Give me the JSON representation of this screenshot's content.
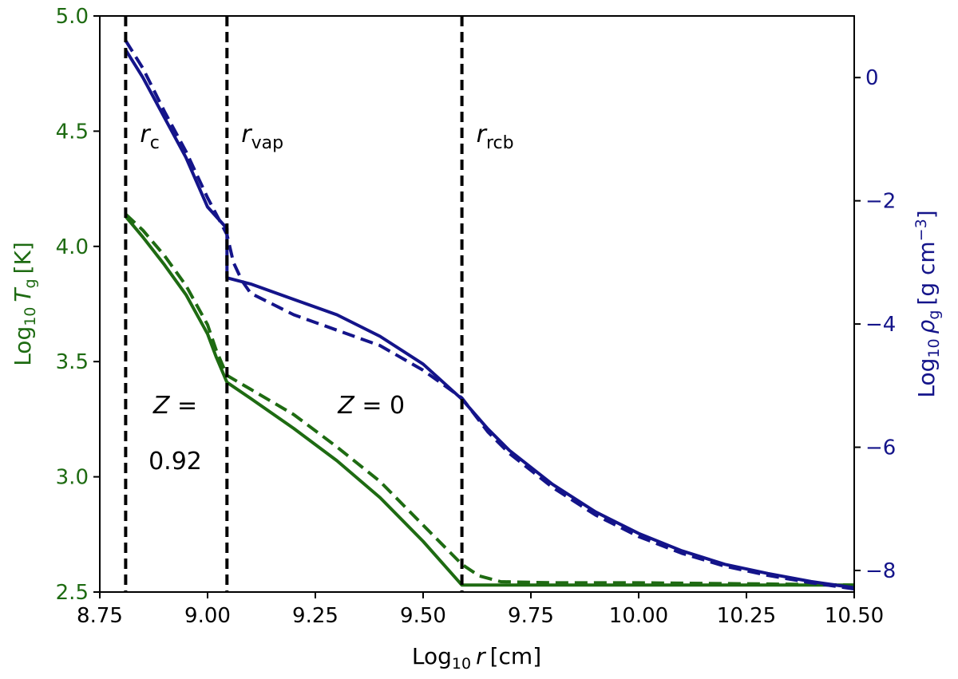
{
  "chart_data": {
    "type": "line",
    "xlabel": {
      "main": "Log",
      "sub": "10",
      "var": "r",
      "unit": "[cm]"
    },
    "ylabel_left": {
      "main": "Log",
      "sub": "10",
      "var": "T",
      "var_sub": "g",
      "unit": "[K]"
    },
    "ylabel_right": {
      "main": "Log",
      "sub": "10",
      "var": "ρ",
      "var_sub": "g",
      "unit": "[g cm",
      "unit_sup": "−3",
      "unit_end": "]"
    },
    "xlim": [
      8.75,
      10.5
    ],
    "ylim_left": [
      2.5,
      5.0
    ],
    "ylim_right": [
      -8.35,
      1.0
    ],
    "x_ticks": [
      {
        "value": 8.75,
        "label": "8.75"
      },
      {
        "value": 9.0,
        "label": "9.00"
      },
      {
        "value": 9.25,
        "label": "9.25"
      },
      {
        "value": 9.5,
        "label": "9.50"
      },
      {
        "value": 9.75,
        "label": "9.75"
      },
      {
        "value": 10.0,
        "label": "10.00"
      },
      {
        "value": 10.25,
        "label": "10.25"
      },
      {
        "value": 10.5,
        "label": "10.50"
      }
    ],
    "y_left_ticks": [
      {
        "value": 2.5,
        "label": "2.5"
      },
      {
        "value": 3.0,
        "label": "3.0"
      },
      {
        "value": 3.5,
        "label": "3.5"
      },
      {
        "value": 4.0,
        "label": "4.0"
      },
      {
        "value": 4.5,
        "label": "4.5"
      },
      {
        "value": 5.0,
        "label": "5.0"
      }
    ],
    "y_right_ticks": [
      {
        "value": 0,
        "label": "0"
      },
      {
        "value": -2,
        "label": "−2"
      },
      {
        "value": -4,
        "label": "−4"
      },
      {
        "value": -6,
        "label": "−6"
      },
      {
        "value": -8,
        "label": "−8"
      }
    ],
    "colors": {
      "temperature": "#1e6b12",
      "density": "#14148a",
      "boundary": "#000000"
    },
    "vlines": [
      {
        "x": 8.81,
        "label_main": "r",
        "label_sub": "c"
      },
      {
        "x": 9.045,
        "label_main": "r",
        "label_sub": "vap"
      },
      {
        "x": 9.59,
        "label_main": "r",
        "label_sub": "rcb"
      }
    ],
    "annotations": [
      {
        "id": "z-inner",
        "line1": "Z =",
        "line2": "0.92",
        "x": 8.925,
        "y_left": 3.31
      },
      {
        "id": "z-outer",
        "line1": "Z = 0",
        "x": 9.38,
        "y_left": 3.31
      }
    ],
    "series": [
      {
        "id": "T-solid",
        "axis": "left",
        "style": "solid",
        "color_key": "temperature",
        "x": [
          8.81,
          8.85,
          8.9,
          8.95,
          9.0,
          9.02,
          9.045,
          9.1,
          9.2,
          9.3,
          9.4,
          9.5,
          9.59,
          9.62,
          9.8,
          10.0,
          10.3,
          10.5
        ],
        "y": [
          4.13,
          4.04,
          3.92,
          3.79,
          3.62,
          3.52,
          3.41,
          3.34,
          3.21,
          3.07,
          2.91,
          2.72,
          2.53,
          2.53,
          2.53,
          2.53,
          2.53,
          2.53
        ]
      },
      {
        "id": "T-dashed",
        "axis": "left",
        "style": "dashed",
        "color_key": "temperature",
        "x": [
          8.81,
          8.85,
          8.9,
          8.95,
          9.0,
          9.02,
          9.045,
          9.1,
          9.2,
          9.3,
          9.4,
          9.5,
          9.59,
          9.63,
          9.68,
          9.8,
          10.0,
          10.3,
          10.5
        ],
        "y": [
          4.14,
          4.07,
          3.96,
          3.83,
          3.66,
          3.55,
          3.44,
          3.38,
          3.27,
          3.13,
          2.98,
          2.79,
          2.62,
          2.57,
          2.545,
          2.54,
          2.54,
          2.535,
          2.53
        ]
      },
      {
        "id": "rho-solid",
        "axis": "right",
        "style": "solid",
        "color_key": "density",
        "x": [
          8.81,
          8.85,
          8.9,
          8.95,
          9.0,
          9.045,
          9.045,
          9.1,
          9.2,
          9.3,
          9.4,
          9.5,
          9.59,
          9.65,
          9.7,
          9.8,
          9.9,
          10.0,
          10.1,
          10.2,
          10.3,
          10.4,
          10.5
        ],
        "y": [
          0.45,
          0.0,
          -0.65,
          -1.3,
          -2.1,
          -2.45,
          -3.25,
          -3.35,
          -3.6,
          -3.85,
          -4.2,
          -4.65,
          -5.22,
          -5.7,
          -6.05,
          -6.6,
          -7.05,
          -7.4,
          -7.68,
          -7.9,
          -8.05,
          -8.18,
          -8.28
        ]
      },
      {
        "id": "rho-dashed",
        "axis": "right",
        "style": "dashed",
        "color_key": "density",
        "x": [
          8.81,
          8.85,
          8.9,
          8.95,
          9.0,
          9.045,
          9.06,
          9.08,
          9.1,
          9.2,
          9.3,
          9.4,
          9.5,
          9.59,
          9.65,
          9.7,
          9.8,
          9.9,
          10.0,
          10.1,
          10.2,
          10.3,
          10.4,
          10.5
        ],
        "y": [
          0.6,
          0.15,
          -0.55,
          -1.2,
          -1.95,
          -2.55,
          -3.0,
          -3.3,
          -3.5,
          -3.85,
          -4.1,
          -4.35,
          -4.75,
          -5.2,
          -5.75,
          -6.1,
          -6.65,
          -7.1,
          -7.45,
          -7.72,
          -7.93,
          -8.08,
          -8.2,
          -8.3
        ]
      }
    ]
  }
}
